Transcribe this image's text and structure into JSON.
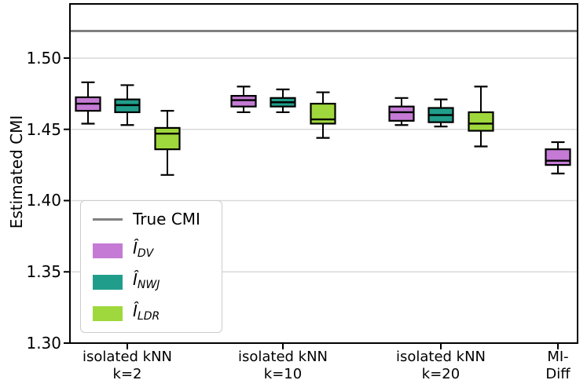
{
  "figure": {
    "ylabel": "Estimated CMI",
    "background": "#ffffff"
  },
  "axes": {
    "ytick_labels": [
      "1.30",
      "1.35",
      "1.40",
      "1.45",
      "1.50"
    ],
    "ytick_values": [
      1.3,
      1.35,
      1.4,
      1.45,
      1.5
    ],
    "xtick_lines": [
      [
        "isolated kNN",
        "k=2"
      ],
      [
        "isolated kNN",
        "k=10"
      ],
      [
        "isolated kNN",
        "k=20"
      ],
      [
        "MI-Diff"
      ]
    ]
  },
  "colors": {
    "grid": "#d9d9d9",
    "spine": "#000000",
    "true_cmi": "#808080",
    "box_edge": "#000000"
  },
  "legend": {
    "position": "lower left",
    "entries": [
      {
        "swatch": "line",
        "color": "#808080",
        "label": "True CMI"
      },
      {
        "swatch": "patch",
        "color": "#c57bd5",
        "label_base": "Î",
        "label_sub": "DV"
      },
      {
        "swatch": "patch",
        "color": "#219e8b",
        "label_base": "Î",
        "label_sub": "NWJ"
      },
      {
        "swatch": "patch",
        "color": "#9fd83c",
        "label_base": "Î",
        "label_sub": "LDR"
      }
    ]
  },
  "chart_data": {
    "type": "boxplot",
    "title": "",
    "xlabel": "",
    "ylabel": "Estimated CMI",
    "ylim": [
      1.3,
      1.538
    ],
    "yticks": [
      1.3,
      1.35,
      1.4,
      1.45,
      1.5
    ],
    "grid": "horizontal",
    "legend_position": "lower left",
    "categories": [
      "isolated kNN k=2",
      "isolated kNN k=10",
      "isolated kNN k=20",
      "MI-Diff"
    ],
    "reference_line": {
      "label": "True CMI",
      "value": 1.519,
      "color": "#808080"
    },
    "series": [
      {
        "name": "I_DV",
        "color": "#c57bd5",
        "boxes": [
          {
            "whislo": 1.454,
            "q1": 1.463,
            "med": 1.468,
            "q3": 1.4725,
            "whishi": 1.483
          },
          {
            "whislo": 1.462,
            "q1": 1.466,
            "med": 1.4705,
            "q3": 1.4735,
            "whishi": 1.48
          },
          {
            "whislo": 1.453,
            "q1": 1.456,
            "med": 1.462,
            "q3": 1.466,
            "whishi": 1.472
          },
          {
            "whislo": 1.419,
            "q1": 1.425,
            "med": 1.428,
            "q3": 1.436,
            "whishi": 1.441
          }
        ]
      },
      {
        "name": "I_NWJ",
        "color": "#219e8b",
        "boxes": [
          {
            "whislo": 1.453,
            "q1": 1.462,
            "med": 1.467,
            "q3": 1.471,
            "whishi": 1.481
          },
          {
            "whislo": 1.462,
            "q1": 1.466,
            "med": 1.469,
            "q3": 1.472,
            "whishi": 1.478
          },
          {
            "whislo": 1.452,
            "q1": 1.455,
            "med": 1.46,
            "q3": 1.465,
            "whishi": 1.471
          },
          null
        ]
      },
      {
        "name": "I_LDR",
        "color": "#9fd83c",
        "boxes": [
          {
            "whislo": 1.418,
            "q1": 1.436,
            "med": 1.447,
            "q3": 1.451,
            "whishi": 1.463
          },
          {
            "whislo": 1.444,
            "q1": 1.454,
            "med": 1.457,
            "q3": 1.468,
            "whishi": 1.476
          },
          {
            "whislo": 1.438,
            "q1": 1.449,
            "med": 1.454,
            "q3": 1.462,
            "whishi": 1.48
          },
          null
        ]
      }
    ]
  }
}
